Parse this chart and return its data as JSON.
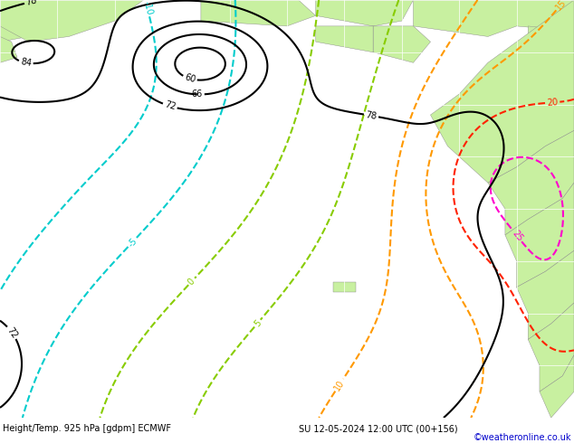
{
  "title_left": "Height/Temp. 925 hPa [gdpm] ECMWF",
  "title_right": "SU 12-05-2024 12:00 UTC (00+156)",
  "copyright": "©weatheronline.co.uk",
  "land_color": "#c8f0a0",
  "ocean_color": "#d0d0d0",
  "grid_color": "#bbbbbb",
  "height_color": "#000000",
  "temp_cyan_color": "#00cccc",
  "temp_green_color": "#88cc00",
  "temp_orange_color": "#ff9900",
  "temp_red_color": "#ff2200",
  "temp_magenta_color": "#ff00cc",
  "bottom_bg": "#cccccc",
  "bottom_text": "#000000",
  "copyright_color": "#0000cc",
  "figsize": [
    6.34,
    4.9
  ],
  "dpi": 100
}
